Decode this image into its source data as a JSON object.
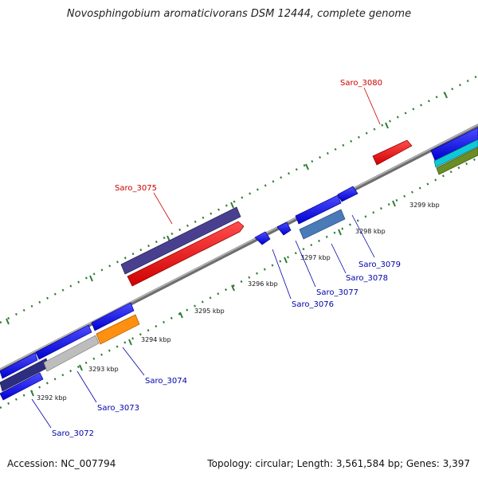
{
  "title": "Novosphingobium aromaticivorans DSM 12444, complete genome",
  "footer": {
    "accession": "Accession: NC_007794",
    "summary": "Topology: circular; Length: 3,561,584 bp; Genes: 3,397"
  },
  "colors": {
    "backbone": "#8c8c8c",
    "tick": "#2e7d32",
    "label_forward": "#cc0000",
    "label_reverse": "#0000aa"
  },
  "tick_labels": [
    "3292 kbp",
    "3293 kbp",
    "3294 kbp",
    "3295 kbp",
    "3296 kbp",
    "3297 kbp",
    "3298 kbp",
    "3299 kbp"
  ],
  "gene_labels": {
    "saro_3072": "Saro_3072",
    "saro_3073": "Saro_3073",
    "saro_3074": "Saro_3074",
    "saro_3075": "Saro_3075",
    "saro_3076": "Saro_3076",
    "saro_3077": "Saro_3077",
    "saro_3078": "Saro_3078",
    "saro_3079": "Saro_3079",
    "saro_3080": "Saro_3080"
  }
}
